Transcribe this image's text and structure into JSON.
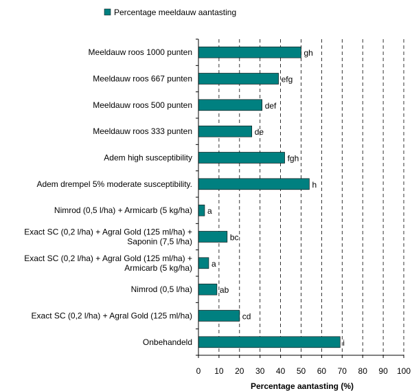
{
  "chart_data": {
    "type": "bar",
    "orientation": "horizontal",
    "xlabel": "Percentage aantasting (%)",
    "xlim": [
      0,
      100
    ],
    "xticks": [
      0,
      10,
      20,
      30,
      40,
      50,
      60,
      70,
      80,
      90,
      100
    ],
    "grid": "vertical-dashed",
    "legend_position": "top",
    "bar_color": "#008080",
    "series": [
      {
        "name": "Percentage meeldauw aantasting",
        "values": [
          50,
          39,
          31,
          26,
          42,
          54,
          3,
          14,
          5,
          9,
          20,
          69
        ]
      }
    ],
    "categories": [
      [
        "Meeldauw roos 1000 punten"
      ],
      [
        "Meeldauw roos 667 punten"
      ],
      [
        "Meeldauw roos 500 punten"
      ],
      [
        "Meeldauw roos 333 punten"
      ],
      [
        "Adem high susceptibility"
      ],
      [
        "Adem drempel 5% moderate susceptibility."
      ],
      [
        "Nimrod (0,5 l/ha) + Armicarb (5 kg/ha)"
      ],
      [
        "Exact SC (0,2 l/ha) + Agral Gold (125 ml/ha) +",
        "Saponin (7,5 l/ha)"
      ],
      [
        "Exact SC (0,2 l/ha) + Agral Gold (125 ml/ha) +",
        "Armicarb (5 kg/ha)"
      ],
      [
        "Nimrod (0,5 l/ha)"
      ],
      [
        "Exact SC (0,2 l/ha) + Agral Gold (125 ml/ha)"
      ],
      [
        "Onbehandeld"
      ]
    ],
    "bar_labels": [
      "gh",
      "efg",
      "def",
      "de",
      "fgh",
      "h",
      "a",
      "bc",
      "a",
      "ab",
      "cd",
      "i"
    ]
  }
}
